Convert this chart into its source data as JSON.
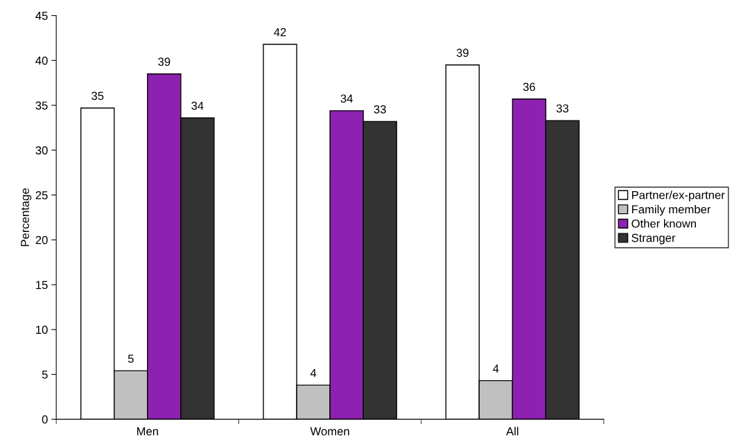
{
  "chart_data": {
    "type": "bar",
    "ylabel": "Percentage",
    "categories": [
      "Men",
      "Women",
      "All"
    ],
    "series": [
      {
        "name": "Partner/ex-partner",
        "color": "#ffffff",
        "values": [
          34.7,
          41.8,
          39.5
        ],
        "value_labels": [
          "35",
          "42",
          "39"
        ]
      },
      {
        "name": "Family member",
        "color": "#c0c0c0",
        "values": [
          5.4,
          3.8,
          4.3
        ],
        "value_labels": [
          "5",
          "4",
          "4"
        ]
      },
      {
        "name": "Other known",
        "color": "#8e22b0",
        "values": [
          38.5,
          34.4,
          35.7
        ],
        "value_labels": [
          "39",
          "34",
          "36"
        ]
      },
      {
        "name": "Stranger",
        "color": "#333333",
        "values": [
          33.6,
          33.2,
          33.3
        ],
        "value_labels": [
          "34",
          "33",
          "33"
        ]
      }
    ],
    "ylim": [
      0,
      45
    ],
    "yticks": [
      0,
      5,
      10,
      15,
      20,
      25,
      30,
      35,
      40,
      45
    ],
    "grid": false,
    "legend": "right"
  }
}
